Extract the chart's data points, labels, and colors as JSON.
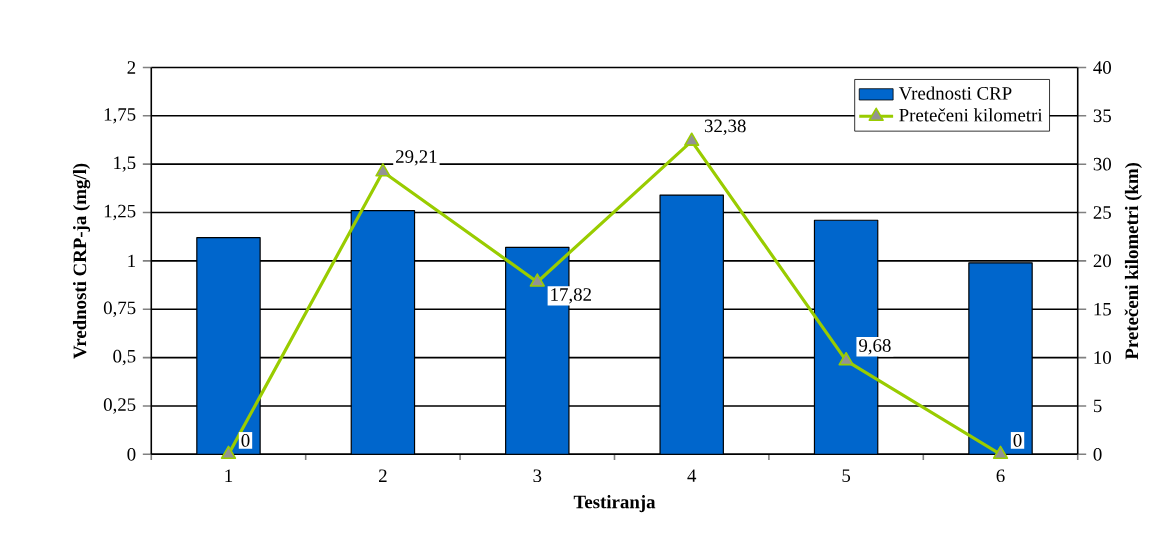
{
  "chart_data": {
    "type": "bar",
    "xlabel": "Testiranja",
    "ylabel": "Vrednosti CRP-ja (mg/l)",
    "y2label": "Pretečeni kilometri (km)",
    "categories": [
      "1",
      "2",
      "3",
      "4",
      "5",
      "6"
    ],
    "series": [
      {
        "name": "Vrednosti CRP",
        "color": "#0066cc",
        "values": [
          1.12,
          1.26,
          1.07,
          1.34,
          1.21,
          0.99
        ]
      },
      {
        "name": "Pretečeni kilometri",
        "type": "line",
        "axis": "y2",
        "color": "#99cc00",
        "marker": "triangle",
        "values": [
          0,
          29.21,
          17.82,
          32.38,
          9.68,
          0
        ],
        "value_labels": [
          "0",
          "29,21",
          "17,82",
          "32,38",
          "9,68",
          "0"
        ]
      }
    ],
    "ylim": [
      0,
      2
    ],
    "yticks": [
      0,
      {
        "value": 0.25,
        "label": "0,25"
      },
      {
        "value": 0.5,
        "label": "0,5"
      },
      {
        "value": 0.75,
        "label": "0,75"
      },
      1,
      {
        "value": 1.25,
        "label": "1,25"
      },
      {
        "value": 1.5,
        "label": "1,5"
      },
      {
        "value": 1.75,
        "label": "1,75"
      },
      2
    ],
    "y2lim": [
      0,
      40
    ],
    "y2ticks": [
      0,
      5,
      10,
      15,
      20,
      25,
      30,
      35,
      40
    ],
    "grid": "y",
    "legend": "top right"
  }
}
